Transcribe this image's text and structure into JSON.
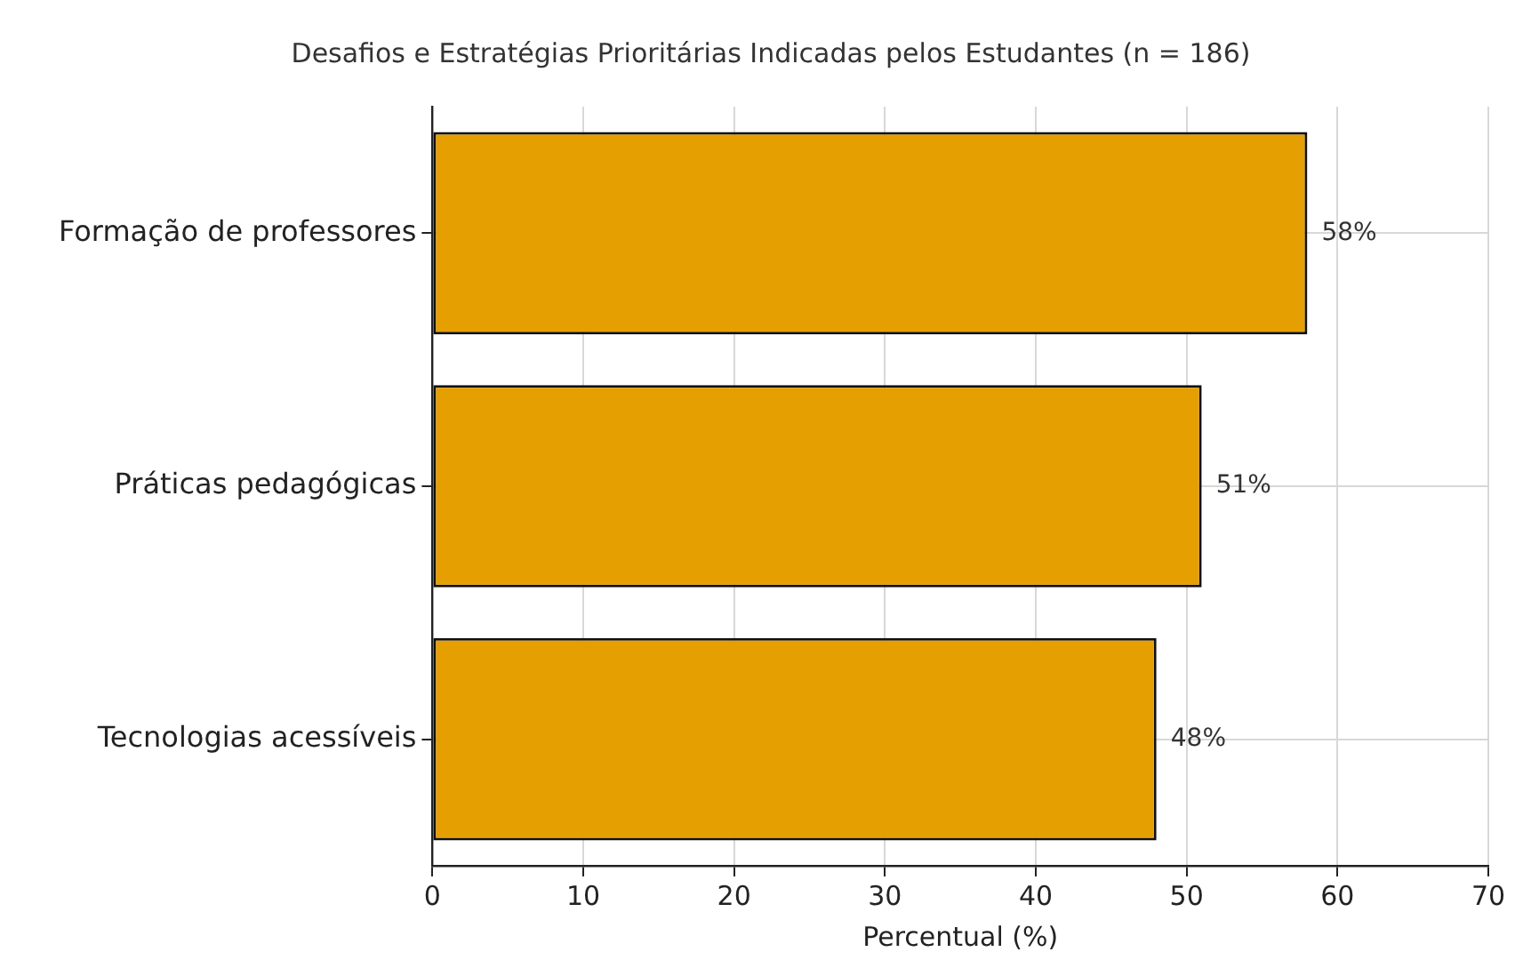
{
  "chart_data": {
    "type": "bar",
    "orientation": "horizontal",
    "title": "Desafios e Estratégias Prioritárias Indicadas pelos Estudantes (n = 186)",
    "xlabel": "Percentual (%)",
    "categories": [
      "Formação de professores",
      "Práticas pedagógicas",
      "Tecnologias acessíveis"
    ],
    "values": [
      58,
      51,
      48
    ],
    "color": "#e69f00",
    "value_labels": [
      "58%",
      "51%",
      "48%"
    ],
    "xlim": [
      0,
      70
    ],
    "xticks": [
      0,
      10,
      20,
      30,
      40,
      50,
      60,
      70
    ],
    "grid": true
  }
}
